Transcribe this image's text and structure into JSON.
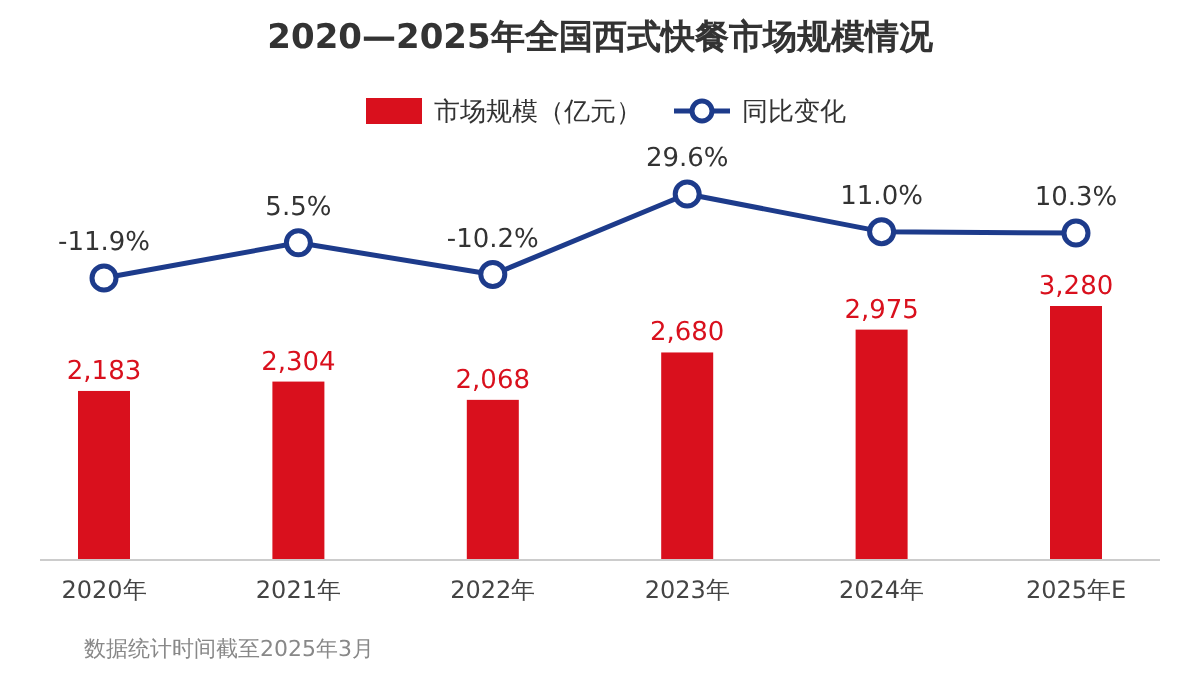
{
  "chart_data": [
    {
      "type": "bar",
      "categories": [
        "2020年",
        "2021年",
        "2022年",
        "2023年",
        "2024年",
        "2025年E"
      ],
      "series": [
        {
          "name": "市场规模（亿元）",
          "color": "#d9101d",
          "values": [
            2183,
            2304,
            2068,
            2680,
            2975,
            3280
          ],
          "value_labels": [
            "2,183",
            "2,304",
            "2,068",
            "2,680",
            "2,975",
            "3,280"
          ]
        }
      ],
      "legend": "top",
      "annotations": [
        "数据统计时间截至2025年3月"
      ]
    },
    {
      "type": "line",
      "title": "2020—2025年全国西式快餐市场规模情况",
      "categories": [
        null,
        null,
        null,
        null,
        null,
        null
      ],
      "series": [
        {
          "name": "同比变化",
          "color": "#1d3b8b",
          "marker": "circle",
          "values": [
            -11.9,
            5.5,
            -10.2,
            29.6,
            11.0,
            10.3
          ],
          "value_labels": [
            "-11.9%",
            "5.5%",
            "-10.2%",
            "29.6%",
            "11.0%",
            "10.3%"
          ]
        }
      ],
      "legend": "top"
    }
  ]
}
